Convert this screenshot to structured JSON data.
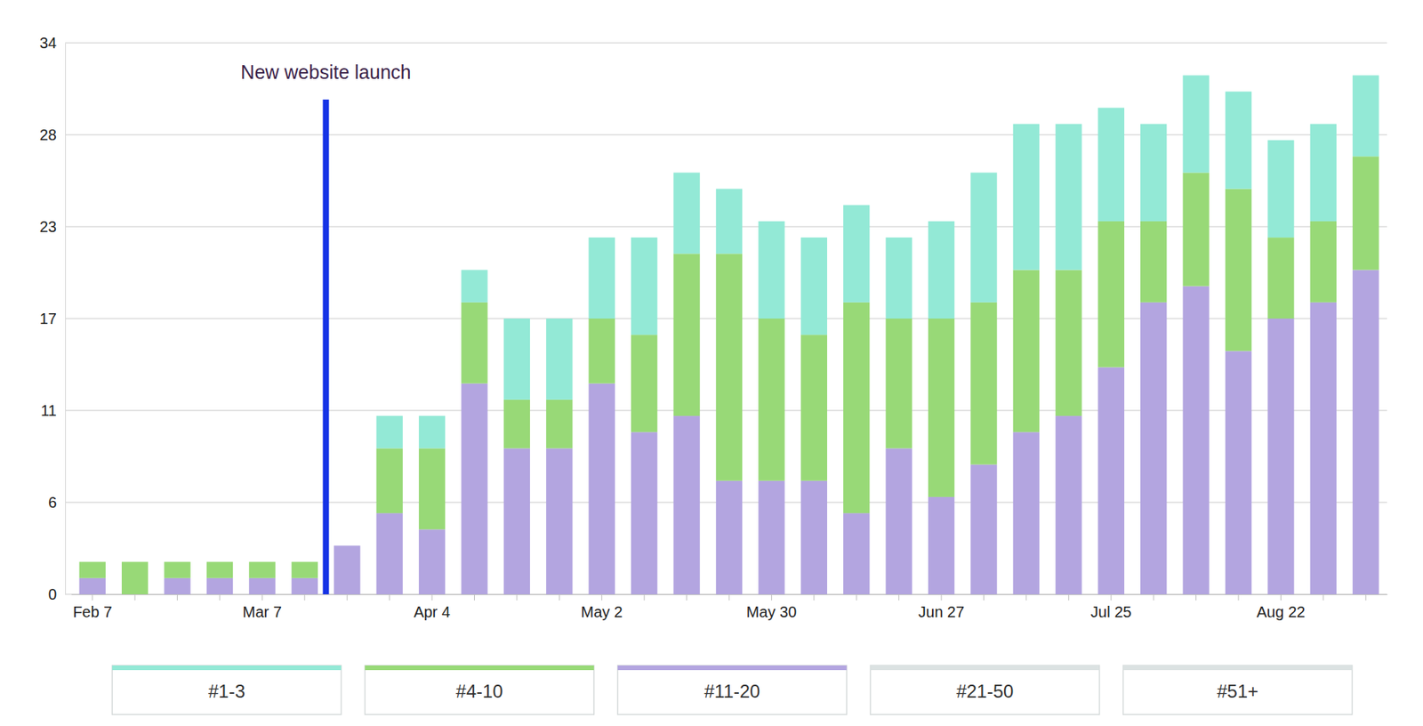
{
  "chart_data": {
    "type": "bar",
    "stacked": true,
    "grid": true,
    "legend": "bottom",
    "categories": [
      "Feb 7",
      null,
      null,
      null,
      "Mar 7",
      null,
      null,
      null,
      "Apr 4",
      null,
      null,
      null,
      "May 2",
      null,
      null,
      null,
      "May 30",
      null,
      null,
      null,
      "Jun 27",
      null,
      null,
      null,
      "Jul 25",
      null,
      null,
      null,
      "Aug 22",
      null,
      null
    ],
    "ylim": [
      0,
      34
    ],
    "yticks": [
      0,
      {
        "value": 5.667,
        "label": "6"
      },
      {
        "value": 11.333,
        "label": "11"
      },
      17,
      {
        "value": 22.667,
        "label": "23"
      },
      {
        "value": 28.333,
        "label": "28"
      },
      34
    ],
    "annotations": [
      {
        "text": "New website launch",
        "x": 5.5,
        "y": 30.5
      }
    ],
    "series": [
      {
        "name": "#1-3",
        "color": "#93e9d6",
        "values": [
          0,
          0,
          0,
          0,
          0,
          0,
          0,
          2,
          2,
          2,
          5,
          5,
          5,
          6,
          5,
          4,
          6,
          6,
          6,
          5,
          6,
          8,
          9,
          9,
          7,
          6,
          6,
          6,
          6,
          6,
          5
        ]
      },
      {
        "name": "#4-10",
        "color": "#98d977",
        "values": [
          1,
          2,
          1,
          1,
          1,
          1,
          0,
          4,
          5,
          5,
          3,
          3,
          4,
          6,
          10,
          14,
          10,
          9,
          13,
          8,
          11,
          10,
          10,
          9,
          9,
          5,
          7,
          10,
          5,
          5,
          7
        ]
      },
      {
        "name": "#11-20",
        "color": "#b3a5e0",
        "values": [
          1,
          0,
          1,
          1,
          1,
          1,
          3,
          5,
          4,
          13,
          9,
          9,
          13,
          10,
          11,
          7,
          7,
          7,
          5,
          9,
          6,
          8,
          10,
          11,
          14,
          18,
          19,
          15,
          17,
          18,
          20
        ]
      },
      {
        "name": "#21-50",
        "color": "#dbe2e2",
        "values": [
          0,
          0,
          0,
          0,
          0,
          0,
          0,
          0,
          0,
          0,
          0,
          0,
          0,
          0,
          0,
          0,
          0,
          0,
          0,
          0,
          0,
          0,
          0,
          0,
          0,
          0,
          0,
          0,
          0,
          0,
          0
        ]
      },
      {
        "name": "#51+",
        "color": "#dbe2e2",
        "values": [
          0,
          0,
          0,
          0,
          0,
          0,
          0,
          0,
          0,
          0,
          0,
          0,
          0,
          0,
          0,
          0,
          0,
          0,
          0,
          0,
          0,
          0,
          0,
          0,
          0,
          0,
          0,
          0,
          0,
          0,
          0
        ]
      }
    ]
  }
}
